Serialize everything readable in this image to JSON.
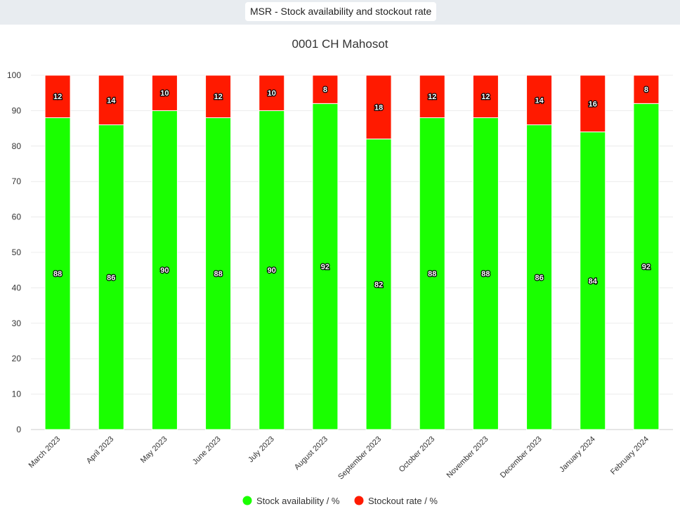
{
  "header": {
    "title": "MSR - Stock availability and stockout rate"
  },
  "chart_data": {
    "type": "bar",
    "stacked": true,
    "title": "0001 CH Mahosot",
    "xlabel": "",
    "ylabel": "",
    "ylim": [
      0,
      100
    ],
    "yticks": [
      0,
      10,
      20,
      30,
      40,
      50,
      60,
      70,
      80,
      90,
      100
    ],
    "grid": true,
    "legend_position": "bottom-center",
    "categories": [
      "March 2023",
      "April 2023",
      "May 2023",
      "June 2023",
      "July 2023",
      "August 2023",
      "September 2023",
      "October 2023",
      "November 2023",
      "December 2023",
      "January 2024",
      "February 2024"
    ],
    "series": [
      {
        "name": "Stock availability / %",
        "color": "#1aff00",
        "values": [
          88,
          86,
          90,
          88,
          90,
          92,
          82,
          88,
          88,
          86,
          84,
          92
        ]
      },
      {
        "name": "Stockout rate / %",
        "color": "#ff1a00",
        "values": [
          12,
          14,
          10,
          12,
          10,
          8,
          18,
          12,
          12,
          14,
          16,
          8
        ]
      }
    ]
  }
}
